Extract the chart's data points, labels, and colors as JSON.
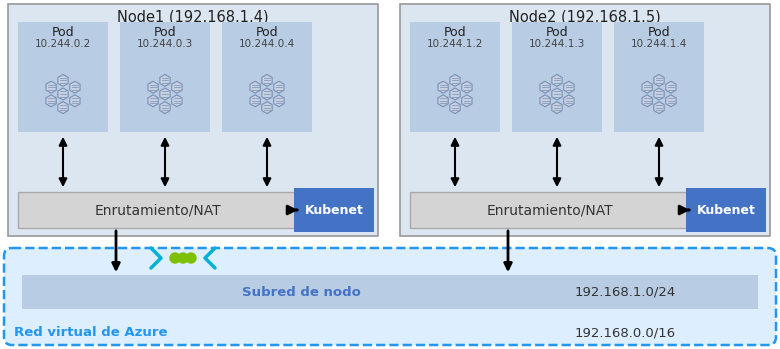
{
  "bg_color": "#ffffff",
  "azure_vnet_bg": "#ddeeff",
  "azure_vnet_border": "#2196f3",
  "node_bg": "#dce6f1",
  "node_border": "#999999",
  "pod_bg": "#b8cce4",
  "nat_bg": "#d4d4d4",
  "nat_border": "#aaaaaa",
  "kubenet_bg": "#4472c4",
  "kubenet_text": "#ffffff",
  "subnet_bg": "#b8cce4",
  "subnet_text_color": "#4472c4",
  "node1_title": "Node1 (192.168.1.4)",
  "node2_title": "Node2 (192.168.1.5)",
  "pod1_labels": [
    "Pod\n10.244.0.2",
    "Pod\n10.244.0.3",
    "Pod\n10.244.0.4"
  ],
  "pod2_labels": [
    "Pod\n10.244.1.2",
    "Pod\n10.244.1.3",
    "Pod\n10.244.1.4"
  ],
  "nat_label": "Enrutamiento/NAT",
  "kubenet_label": "Kubenet",
  "subnet_label": "Subred de nodo",
  "subnet_ip": "192.168.1.0/24",
  "vnet_label": "Red virtual de Azure",
  "vnet_ip": "192.168.0.0/16",
  "arrow_color": "#000000",
  "cyan_color": "#00b0d8",
  "green_color": "#7dc000",
  "pod_icon_outer": "#7a8fb5",
  "pod_icon_inner": "#c5d0e0"
}
